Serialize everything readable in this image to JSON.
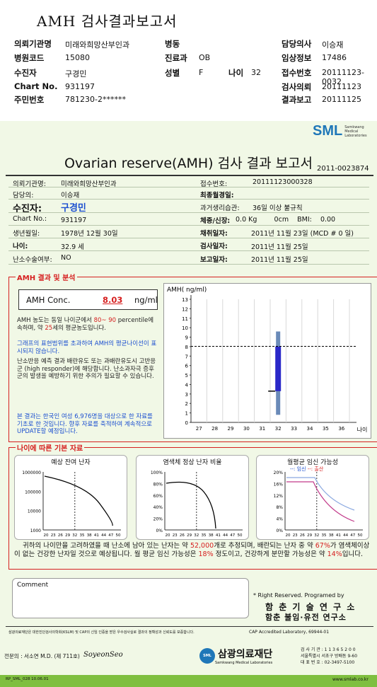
{
  "top": {
    "title": "AMH 검사결과보고서",
    "rows": [
      {
        "l1": "의뢰기관명",
        "v1": "미래와희망산부인과",
        "l2": "병동",
        "v2": "",
        "l3": "담당의사",
        "v3": "이승재"
      },
      {
        "l1": "병원코드",
        "v1": "15080",
        "l2": "진료과",
        "v2": "OB",
        "l3": "임상정보",
        "v3": "17486"
      },
      {
        "l1": "수진자",
        "v1": "구경민",
        "l2": "성별",
        "v2": "F",
        "l2b": "나이",
        "v2b": "32",
        "l3": "접수번호",
        "v3": "20111123-0032"
      },
      {
        "l1": "Chart No.",
        "v1": "931197",
        "l2": "",
        "v2": "",
        "l3": "검사의뢰",
        "v3": "20111123"
      },
      {
        "l1": "주민번호",
        "v1": "781230-2******",
        "l2": "",
        "v2": "",
        "l3": "결과보고",
        "v3": "20111125"
      }
    ]
  },
  "report": {
    "logo": "SML",
    "logo_sub1": "Samkwang",
    "logo_sub2": "Medical",
    "logo_sub3": "Laboratories",
    "title": "Ovarian reserve(AMH) 검사 결과 보고서",
    "number": "2011-0023874",
    "left_info": [
      {
        "label": "의뢰기관명:",
        "value": "미래와희망산부인과"
      },
      {
        "label": "담당의:",
        "value": "이승재"
      },
      {
        "label": "수진자:",
        "value": "구경민"
      },
      {
        "label": "Chart No.:",
        "value": "931197"
      },
      {
        "label": "생년월일:",
        "value": "1978년 12월 30일"
      },
      {
        "label": "나이:",
        "value": "32.9 세"
      },
      {
        "label": "난소수술여부:",
        "value": "NO"
      }
    ],
    "right_info": [
      {
        "label": "접수번호:",
        "value": "20111123000328"
      },
      {
        "label": "최종월경일:",
        "value": ""
      },
      {
        "label": "과거생리습관:",
        "value": "36일 이상 불규칙"
      },
      {
        "label": "체중/신장:",
        "value": "0.0 Kg        0cm    BMI:    0.00"
      },
      {
        "label": "채취일자:",
        "value": "2011년 11월 23일 (MCD # 0 일)"
      },
      {
        "label": "검사일자:",
        "value": "2011년 11월 25일"
      },
      {
        "label": "보고일자:",
        "value": "2011년 11월 25일"
      }
    ]
  },
  "amh": {
    "section_title": "AMH 결과 및 분석",
    "conc_label": "AMH Conc.",
    "conc_value": "8.03",
    "conc_unit": "ng/ml",
    "p1a": "AMH 농도는 동일 나이군에서",
    "p1b": "80~ 90",
    "p1c": "percentile에 속하며, 약",
    "p1d": "25",
    "p1e": "세의 평균농도입니다.",
    "p2": "그래프의 표현범위를 초과하여 AMH의 평균나이선이 표시되지 않습니다.",
    "p3": "난소반응 예측 결과 배란유도 또는 과배란유도시 고반응군 (high responder)에 해당합니다. 난소과자극 증후군의 발생을 예방하기 위한 주의가 필요할 수 있습니다.",
    "p4": "본 결과는 한국인 여성 6,976명을 대상으로 한 자료를 기초로 한 것입니다. 향후 자료를 축적하여 계속적으로 UPDATE할 예정입니다."
  },
  "amh_chart_data": {
    "type": "box",
    "ylabel": "AMH( ng/ml)",
    "xlabel": "나이",
    "ylim": [
      0,
      13
    ],
    "x_ticks": [
      "27",
      "28",
      "29",
      "30",
      "31",
      "32",
      "33",
      "34",
      "35",
      "36"
    ],
    "y_ticks": [
      "0",
      "1",
      "2",
      "3",
      "4",
      "5",
      "6",
      "7",
      "8",
      "9",
      "10",
      "11",
      "12",
      "13"
    ],
    "age": 32,
    "result": 8.03,
    "box_low": 3.3,
    "box_high": 8.0,
    "whisker_low": 0.8,
    "whisker_high": 9.6,
    "colors": {
      "box": "#2a28c8",
      "whisker": "#6a8ab8"
    }
  },
  "basic": {
    "section_title": "나이에 따른 기본 자료",
    "c1_title": "예상 잔여 난자",
    "c2_title": "염색체 정상 난자 비율",
    "c3_title": "월평균 임신 가능성",
    "c3_legend_a": "--: 임신",
    "c3_legend_sep": "--: 출산",
    "x_ticks": [
      "20",
      "23",
      "26",
      "29",
      "32",
      "35",
      "38",
      "41",
      "44",
      "47",
      "50"
    ],
    "c1_y": [
      "1000000",
      "100000",
      "10000",
      "1000"
    ],
    "c2_y": [
      "100%",
      "80%",
      "60%",
      "40%",
      "20%",
      "0%"
    ],
    "c3_y": [
      "20%",
      "16%",
      "12%",
      "8%",
      "4%",
      "0%"
    ]
  },
  "summary": {
    "s1": "귀하의 나이만을 고려하였을 때 난소에 남아 있는 난자는 약",
    "s2": "52,000",
    "s3": "개로 추정되며, 배란되는 난자 중",
    "s4": "약",
    "s5": "67%",
    "s6": "가 염색체이상이 없는 건강한 난자일 것으로 예상됩니다. 월 평균 임신 가능성은",
    "s7": "18%",
    "s8": "정도이고,",
    "s9": "건강하게 분만할 가능성은 약",
    "s10": "14%",
    "s11": "입니다."
  },
  "footer": {
    "comment": "Comment",
    "rights": "* Right Reserved. Programed by",
    "dept1": "함 춘 기 술 연 구 소",
    "dept2": "함춘 불임·유전 연구소",
    "note": "삼광의료재단은 대한진단검사의학회(KSLM) 및 CAP의 신임 인증을 받은 우수검사실로 결과의 정확성과 신뢰도를 보증합니다.",
    "cap": "CAP  Accredited  Laboratory,  69944-01",
    "expert": "전문의 : 서소연 M.D. (제 711호)",
    "sign": "SoyeonSeo",
    "org_mark": "SML",
    "org_name": "삼광의료재단",
    "org_sub": "Samkwang Medical Laboratories",
    "contact1": "검 사 기 관 : 1 1 3 6 5 2 0 0",
    "contact2": "서울특별시 서초구 방배동 9-60",
    "contact3": "대 표 번 호 : 02-3497-5100",
    "bar_left": "RP_SML_028  10.06.01",
    "bar_right": "www.smlab.co.kr"
  }
}
